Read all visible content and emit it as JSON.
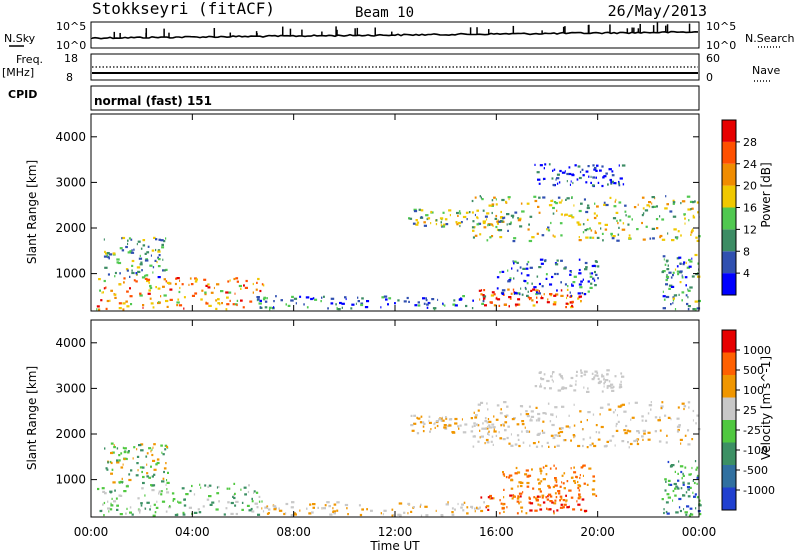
{
  "header": {
    "station": "Stokkseyri (fitACF)",
    "beam": "Beam 10",
    "date": "26/May/2013"
  },
  "panels": {
    "nsky_label": "N.Sky",
    "nsky_ticks": [
      "10^5",
      "10^0"
    ],
    "nsearch_label": "N.Search",
    "nsearch_ticks": [
      "10^5",
      "10^0"
    ],
    "freq_label_top": "Freq.",
    "freq_label_unit": "[MHz]",
    "freq_ticks": [
      "18",
      "8"
    ],
    "nave_label": "Nave",
    "nave_ticks": [
      "60",
      "0"
    ],
    "cpid_label": "CPID",
    "cpid_value": "normal (fast) 151"
  },
  "chart_data": [
    {
      "type": "heatmap",
      "name": "power",
      "ylabel": "Slant Range [km]",
      "xlabel": "",
      "ylim": [
        180,
        4500
      ],
      "yticks": [
        "1000",
        "2000",
        "3000",
        "4000"
      ],
      "colorbar_label": "Power [dB]",
      "colorbar_ticks": [
        "4",
        "8",
        "12",
        "16",
        "20",
        "24",
        "28"
      ],
      "colors": [
        "#0000ff",
        "#3050b0",
        "#3c8c64",
        "#50c850",
        "#f0c800",
        "#f08c00",
        "#ff5000",
        "#e60000"
      ],
      "regions": [
        {
          "t0": 0.2,
          "t1": 6.8,
          "r0": 200,
          "r1": 900,
          "level": 0.7
        },
        {
          "t0": 0.5,
          "t1": 3.0,
          "r0": 900,
          "r1": 1800,
          "level": 0.35
        },
        {
          "t0": 6.5,
          "t1": 15.5,
          "r0": 200,
          "r1": 500,
          "level": 0.25
        },
        {
          "t0": 15.3,
          "t1": 19.5,
          "r0": 250,
          "r1": 650,
          "level": 0.8
        },
        {
          "t0": 15.0,
          "t1": 24.0,
          "r0": 1700,
          "r1": 2700,
          "level": 0.45
        },
        {
          "t0": 12.5,
          "t1": 16.5,
          "r0": 2000,
          "r1": 2400,
          "level": 0.4
        },
        {
          "t0": 16.0,
          "t1": 20.0,
          "r0": 500,
          "r1": 1300,
          "level": 0.2
        },
        {
          "t0": 17.5,
          "t1": 21.0,
          "r0": 2900,
          "r1": 3400,
          "level": 0.1
        },
        {
          "t0": 22.5,
          "t1": 24.0,
          "r0": 200,
          "r1": 1400,
          "level": 0.3
        }
      ]
    },
    {
      "type": "heatmap",
      "name": "velocity",
      "ylabel": "Slant Range [km]",
      "xlabel": "Time UT",
      "ylim": [
        180,
        4500
      ],
      "yticks": [
        "1000",
        "2000",
        "3000",
        "4000"
      ],
      "xticks": [
        "00:00",
        "04:00",
        "08:00",
        "12:00",
        "16:00",
        "20:00",
        "00:00"
      ],
      "colorbar_label": "Velocity [m s^-1]",
      "colorbar_ticks": [
        "1000",
        "500",
        "100",
        "25",
        "-25",
        "-100",
        "-500",
        "-1000"
      ],
      "colors": [
        "#2040d0",
        "#3070a0",
        "#3c9064",
        "#50c840",
        "#c8c8c8",
        "#f09600",
        "#ff6000",
        "#e60000"
      ],
      "regions": [
        {
          "t0": 0.2,
          "t1": 6.8,
          "r0": 200,
          "r1": 900,
          "vel": [
            2,
            3,
            4
          ]
        },
        {
          "t0": 0.5,
          "t1": 3.0,
          "r0": 900,
          "r1": 1800,
          "vel": [
            2,
            3,
            5
          ]
        },
        {
          "t0": 6.5,
          "t1": 15.5,
          "r0": 200,
          "r1": 500,
          "vel": [
            4,
            5
          ]
        },
        {
          "t0": 15.3,
          "t1": 19.5,
          "r0": 250,
          "r1": 650,
          "vel": [
            5,
            6,
            7
          ]
        },
        {
          "t0": 15.0,
          "t1": 24.0,
          "r0": 1700,
          "r1": 2700,
          "vel": [
            4,
            4,
            5
          ]
        },
        {
          "t0": 12.5,
          "t1": 16.5,
          "r0": 2000,
          "r1": 2400,
          "vel": [
            4,
            5
          ]
        },
        {
          "t0": 16.0,
          "t1": 20.0,
          "r0": 500,
          "r1": 1300,
          "vel": [
            5,
            6
          ]
        },
        {
          "t0": 17.5,
          "t1": 21.0,
          "r0": 2900,
          "r1": 3400,
          "vel": [
            4
          ]
        },
        {
          "t0": 22.5,
          "t1": 24.0,
          "r0": 200,
          "r1": 1400,
          "vel": [
            0,
            2,
            3
          ]
        }
      ]
    }
  ],
  "time_axis": {
    "range_hours": [
      0,
      24
    ]
  }
}
